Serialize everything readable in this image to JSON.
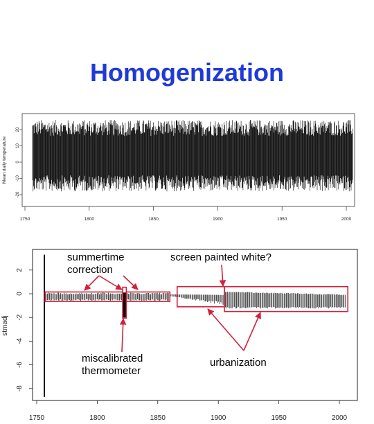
{
  "title": "Homogenization",
  "chart_data": [
    {
      "type": "line",
      "description_of_series": "daily mean temperature, noisy seasonal cycle",
      "ylabel": "Mean daily temperature",
      "xlabel": "",
      "xlim": [
        1756,
        2005
      ],
      "ylim": [
        -28,
        26
      ],
      "x_ticks": [
        "1750",
        "1800",
        "1850",
        "1900",
        "1950",
        "2000"
      ],
      "y_ticks": [
        "20",
        "10",
        "0",
        "-10",
        "-20"
      ],
      "series": [
        {
          "x_range": [
            1756,
            2005
          ],
          "amplitude": 22,
          "center": 4
        }
      ]
    },
    {
      "type": "line",
      "ylabel": "stmadj",
      "xlabel": "",
      "xlim": [
        1750,
        2007
      ],
      "ylim": [
        -9,
        3.5
      ],
      "x_ticks": [
        "1750",
        "1800",
        "1850",
        "1900",
        "1950",
        "2000"
      ],
      "y_ticks": [
        "2",
        "0",
        "-2",
        "-4",
        "-6",
        "-8"
      ],
      "segments": [
        {
          "x_start": 1756,
          "x_end": 1757,
          "y_low": -8.7,
          "y_high": 3.3
        },
        {
          "x_start": 1757,
          "x_end": 1821,
          "y_low": -0.6,
          "y_high": 0.1
        },
        {
          "x_start": 1821,
          "x_end": 1824,
          "y_low": -2.0,
          "y_high": 0.1
        },
        {
          "x_start": 1824,
          "x_end": 1860,
          "y_low": -0.6,
          "y_high": 0.1
        },
        {
          "x_start": 1860,
          "x_end": 1905,
          "y_low": -1.0,
          "y_high": 0.0
        },
        {
          "x_start": 1905,
          "x_end": 2005,
          "y_low": -1.3,
          "y_high": 0.3
        }
      ],
      "annotations": [
        {
          "text": "summertime correction"
        },
        {
          "text": "screen painted white?"
        },
        {
          "text": "miscalibrated thermometer"
        },
        {
          "text": "urbanization"
        }
      ],
      "highlight_color": "#d0223a"
    }
  ],
  "labels": {
    "summertime_line1": "summertime",
    "summertime_line2": "correction",
    "screen": "screen painted white?",
    "miscal_line1": "miscalibrated",
    "miscal_line2": "thermometer",
    "urban": "urbanization"
  }
}
